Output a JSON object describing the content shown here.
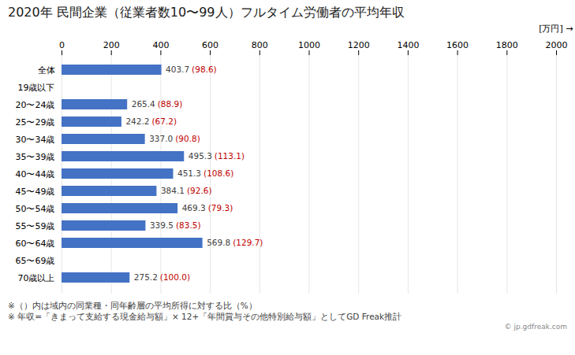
{
  "chart_data": {
    "type": "bar",
    "orientation": "horizontal",
    "title": "2020年 民間企業（従業者数10〜99人）フルタイム労働者の平均年収",
    "xlabel": "[万円]",
    "categories": [
      "全体",
      "19歳以下",
      "20〜24歳",
      "25〜29歳",
      "30〜34歳",
      "35〜39歳",
      "40〜44歳",
      "45〜49歳",
      "50〜54歳",
      "55〜59歳",
      "60〜64歳",
      "65〜69歳",
      "70歳以上"
    ],
    "values": [
      403.7,
      0,
      265.4,
      242.2,
      337.0,
      495.3,
      451.3,
      384.1,
      469.3,
      339.5,
      569.8,
      0,
      275.2
    ],
    "value_labels": [
      "403.7",
      null,
      "265.4",
      "242.2",
      "337.0",
      "495.3",
      "451.3",
      "384.1",
      "469.3",
      "339.5",
      "569.8",
      null,
      "275.2"
    ],
    "ratios": [
      98.6,
      null,
      88.9,
      67.2,
      90.8,
      113.1,
      108.6,
      92.6,
      79.3,
      83.5,
      129.7,
      null,
      100.0
    ],
    "ratio_labels": [
      "(98.6)",
      null,
      "(88.9)",
      "(67.2)",
      "(90.8)",
      "(113.1)",
      "(108.6)",
      "(92.6)",
      "(79.3)",
      "(83.5)",
      "(129.7)",
      null,
      "(100.0)"
    ],
    "color": "#4472C4",
    "xlim": [
      0,
      2000
    ],
    "xticks": [
      0,
      200,
      400,
      600,
      800,
      1000,
      1200,
      1400,
      1600,
      1800,
      2000
    ],
    "grid": true,
    "data_labels": true,
    "notes": [
      "※（）内は域内の同業種・同年齢層の平均所得に対する比（%）",
      "※ 年収=「きまって支給する現金給与額」× 12+「年間賞与その他特別給与額」としてGD Freak推計"
    ],
    "source": "© jp.gdfreak.com"
  }
}
